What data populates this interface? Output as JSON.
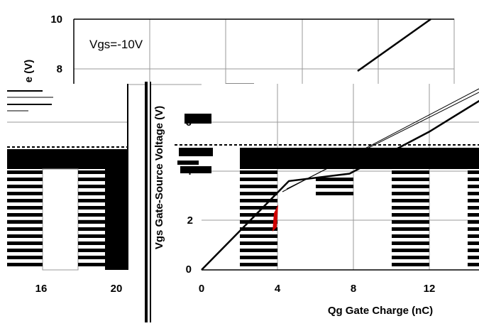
{
  "chart_data": {
    "type": "line",
    "title": "",
    "xlabel": "Qg Gate Charge (nC)",
    "ylabel": "Vgs Gate-Source Voltage (V)",
    "ylabel_fragment": "e (V)",
    "annotation": "Vgs=-10V",
    "x_ticks": [
      "0",
      "4",
      "8",
      "12",
      "16",
      "20"
    ],
    "y_ticks": [
      "0",
      "2",
      "4",
      "6",
      "8",
      "10"
    ],
    "xlim": [
      0,
      20
    ],
    "ylim": [
      0,
      10
    ],
    "grid": true,
    "series": [
      {
        "x": [
          0,
          4.6,
          7.8,
          12,
          16,
          20
        ],
        "y": [
          0,
          3.6,
          3.9,
          5.6,
          7.5,
          10
        ],
        "color": "#000000"
      }
    ]
  }
}
